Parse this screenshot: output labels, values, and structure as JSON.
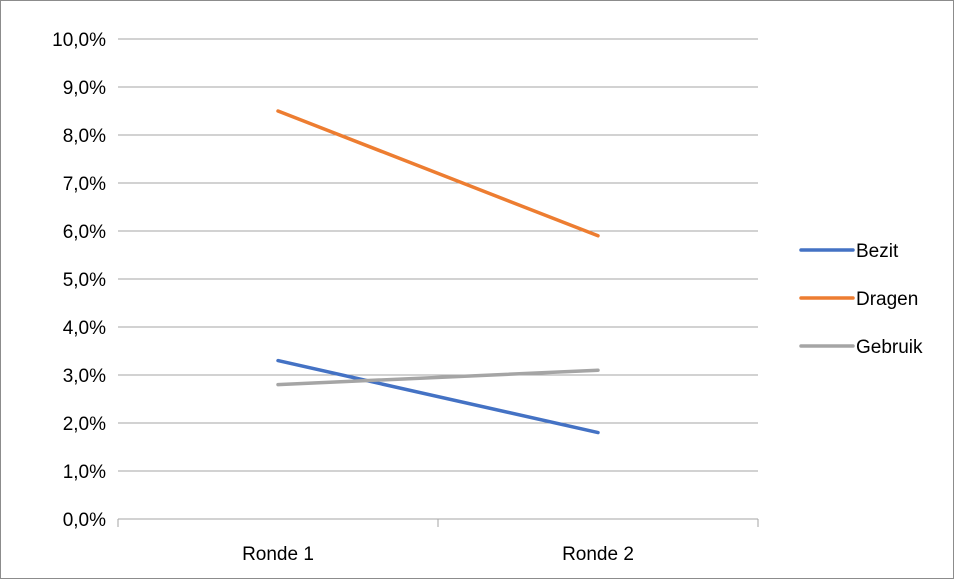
{
  "chart_data": {
    "type": "line",
    "categories": [
      "Ronde 1",
      "Ronde 2"
    ],
    "series": [
      {
        "name": "Bezit",
        "values": [
          3.3,
          1.8
        ],
        "color": "#4472c4"
      },
      {
        "name": "Dragen",
        "values": [
          8.5,
          5.9
        ],
        "color": "#ed7d31"
      },
      {
        "name": "Gebruik",
        "values": [
          2.8,
          3.1
        ],
        "color": "#a5a5a5"
      }
    ],
    "ylim": [
      0,
      10
    ],
    "y_ticks": [
      "0,0%",
      "1,0%",
      "2,0%",
      "3,0%",
      "4,0%",
      "5,0%",
      "6,0%",
      "7,0%",
      "8,0%",
      "9,0%",
      "10,0%"
    ],
    "title": "",
    "xlabel": "",
    "ylabel": "",
    "grid": true,
    "legend_position": "right",
    "colors": {
      "gridline": "#a6a6a6",
      "axis": "#a6a6a6"
    }
  }
}
